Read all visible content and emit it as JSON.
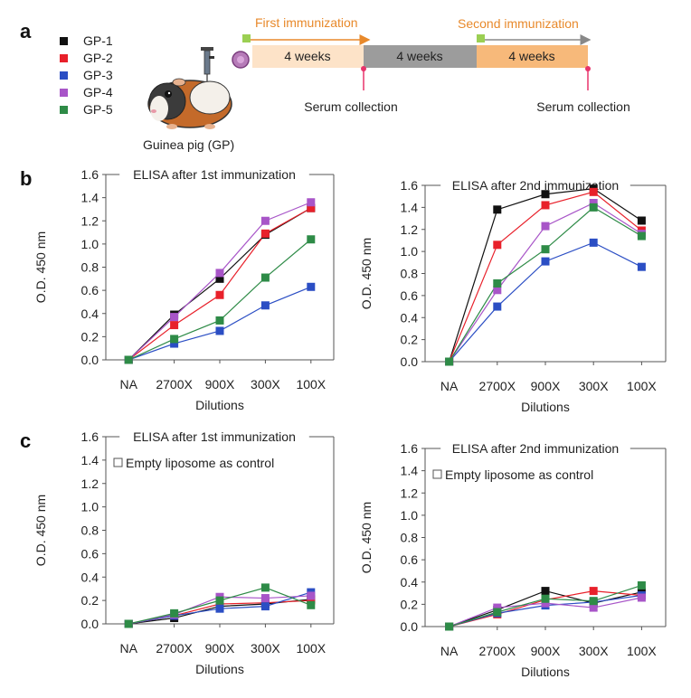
{
  "panel_labels": {
    "a": "a",
    "b": "b",
    "c": "c"
  },
  "legend": [
    {
      "name": "GP-1",
      "color": "#111111"
    },
    {
      "name": "GP-2",
      "color": "#e8202a"
    },
    {
      "name": "GP-3",
      "color": "#2b4ec4"
    },
    {
      "name": "GP-4",
      "color": "#a855c8"
    },
    {
      "name": "GP-5",
      "color": "#2e8b47"
    }
  ],
  "schematic": {
    "animal_label": "Guinea pig (GP)",
    "first_immunization": "First immunization",
    "second_immunization": "Second immunization",
    "period_1": "4 weeks",
    "period_2": "4 weeks",
    "period_3": "4 weeks",
    "serum_1": "Serum collection",
    "serum_2": "Serum collection",
    "colors": {
      "orange_text": "#e8892b",
      "block_light": "#fde3c8",
      "block_gray": "#9c9c9c",
      "block_orange": "#f7b97a",
      "green_marker": "#9bcf53",
      "pin": "#e8336b"
    }
  },
  "chart_data": [
    {
      "id": "b-left",
      "type": "line",
      "title": "ELISA after 1st immunization",
      "xlabel": "Dilutions",
      "ylabel": "O.D. 450 nm",
      "categories": [
        "NA",
        "2700X",
        "900X",
        "300X",
        "100X"
      ],
      "ylim": [
        0,
        1.6
      ],
      "yticks": [
        "0.0",
        "0.2",
        "0.4",
        "0.6",
        "0.8",
        "1.0",
        "1.2",
        "1.4",
        "1.6"
      ],
      "series": [
        {
          "name": "GP-1",
          "values": [
            0.0,
            0.39,
            0.7,
            1.08,
            1.31
          ]
        },
        {
          "name": "GP-2",
          "values": [
            0.0,
            0.3,
            0.56,
            1.09,
            1.31
          ]
        },
        {
          "name": "GP-3",
          "values": [
            0.0,
            0.14,
            0.25,
            0.47,
            0.63
          ]
        },
        {
          "name": "GP-4",
          "values": [
            0.0,
            0.37,
            0.75,
            1.2,
            1.36
          ]
        },
        {
          "name": "GP-5",
          "values": [
            0.0,
            0.18,
            0.34,
            0.71,
            1.04
          ]
        }
      ]
    },
    {
      "id": "b-right",
      "type": "line",
      "title": "ELISA after 2nd immunization",
      "xlabel": "Dilutions",
      "ylabel": "O.D. 450 nm",
      "categories": [
        "NA",
        "2700X",
        "900X",
        "300X",
        "100X"
      ],
      "ylim": [
        0,
        1.6
      ],
      "yticks": [
        "0.0",
        "0.2",
        "0.4",
        "0.6",
        "0.8",
        "1.0",
        "1.2",
        "1.4",
        "1.6"
      ],
      "series": [
        {
          "name": "GP-1",
          "values": [
            0.0,
            1.38,
            1.52,
            1.57,
            1.28
          ]
        },
        {
          "name": "GP-2",
          "values": [
            0.0,
            1.06,
            1.42,
            1.54,
            1.19
          ]
        },
        {
          "name": "GP-3",
          "values": [
            0.0,
            0.5,
            0.91,
            1.08,
            0.86
          ]
        },
        {
          "name": "GP-4",
          "values": [
            0.0,
            0.65,
            1.23,
            1.44,
            1.16
          ]
        },
        {
          "name": "GP-5",
          "values": [
            0.0,
            0.71,
            1.02,
            1.4,
            1.14
          ]
        }
      ]
    },
    {
      "id": "c-left",
      "type": "line",
      "title": "ELISA after 1st immunization",
      "annotation": "Empty liposome as control",
      "xlabel": "Dilutions",
      "ylabel": "O.D. 450 nm",
      "categories": [
        "NA",
        "2700X",
        "900X",
        "300X",
        "100X"
      ],
      "ylim": [
        0,
        1.6
      ],
      "yticks": [
        "0.0",
        "0.2",
        "0.4",
        "0.6",
        "0.8",
        "1.0",
        "1.2",
        "1.4",
        "1.6"
      ],
      "series": [
        {
          "name": "GP-1",
          "values": [
            0.0,
            0.05,
            0.15,
            0.17,
            0.21
          ]
        },
        {
          "name": "GP-2",
          "values": [
            0.0,
            0.07,
            0.17,
            0.18,
            0.2
          ]
        },
        {
          "name": "GP-3",
          "values": [
            0.0,
            0.07,
            0.13,
            0.15,
            0.27
          ]
        },
        {
          "name": "GP-4",
          "values": [
            0.0,
            0.08,
            0.23,
            0.22,
            0.24
          ]
        },
        {
          "name": "GP-5",
          "values": [
            0.0,
            0.09,
            0.2,
            0.31,
            0.16
          ]
        }
      ]
    },
    {
      "id": "c-right",
      "type": "line",
      "title": "ELISA after 2nd immunization",
      "annotation": "Empty liposome as control",
      "xlabel": "Dilutions",
      "ylabel": "O.D. 450 nm",
      "categories": [
        "NA",
        "2700X",
        "900X",
        "300X",
        "100X"
      ],
      "ylim": [
        0,
        1.6
      ],
      "yticks": [
        "0.0",
        "0.2",
        "0.4",
        "0.6",
        "0.8",
        "1.0",
        "1.2",
        "1.4",
        "1.6"
      ],
      "series": [
        {
          "name": "GP-1",
          "values": [
            0.0,
            0.15,
            0.32,
            0.21,
            0.31
          ]
        },
        {
          "name": "GP-2",
          "values": [
            0.0,
            0.11,
            0.24,
            0.32,
            0.28
          ]
        },
        {
          "name": "GP-3",
          "values": [
            0.0,
            0.12,
            0.19,
            0.22,
            0.28
          ]
        },
        {
          "name": "GP-4",
          "values": [
            0.0,
            0.17,
            0.21,
            0.17,
            0.26
          ]
        },
        {
          "name": "GP-5",
          "values": [
            0.0,
            0.13,
            0.25,
            0.23,
            0.37
          ]
        }
      ]
    }
  ]
}
